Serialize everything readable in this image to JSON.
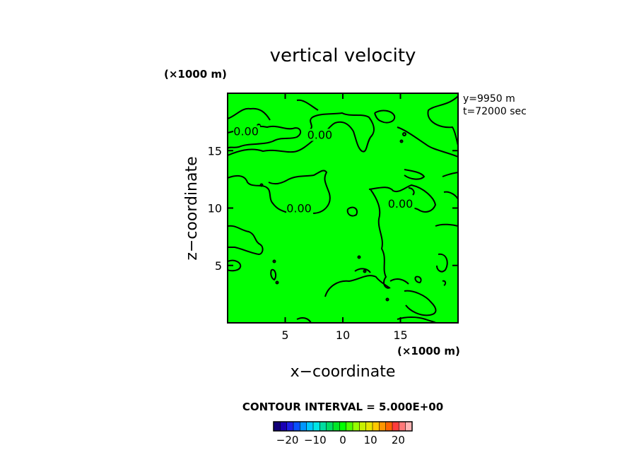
{
  "chart_data": {
    "type": "contour",
    "title": "vertical velocity",
    "xlabel": "x−coordinate",
    "ylabel": "z−coordinate",
    "x_unit": "(×1000 m)",
    "y_unit": "(×1000 m)",
    "xlim": [
      0,
      20
    ],
    "ylim": [
      0,
      20
    ],
    "x_ticks": [
      5,
      10,
      15
    ],
    "y_ticks": [
      5,
      10,
      15
    ],
    "x_tick_labels": [
      "5",
      "10",
      "15"
    ],
    "y_tick_labels": [
      "5",
      "10",
      "15"
    ],
    "field_color": "#00ff00",
    "annotations": [
      "y=9950 m",
      "t=72000 sec"
    ],
    "contour_labels": [
      {
        "text": "0.00",
        "x": 1.6,
        "z": 16.4
      },
      {
        "text": "0.00",
        "x": 8.0,
        "z": 16.1
      },
      {
        "text": "0.00",
        "x": 6.2,
        "z": 9.7
      },
      {
        "text": "0.00",
        "x": 15.0,
        "z": 10.1
      }
    ],
    "contour_interval_text": "CONTOUR INTERVAL = 5.000E+00",
    "colorbar": {
      "colors": [
        "#120078",
        "#1a00b4",
        "#1e1ee6",
        "#0a50ff",
        "#0096ff",
        "#00c8ff",
        "#00e6e6",
        "#00dca0",
        "#00dc64",
        "#00e628",
        "#00ff00",
        "#50ff00",
        "#96ff00",
        "#c8f000",
        "#e6e600",
        "#ffc800",
        "#ff9600",
        "#ff6400",
        "#ff3c3c",
        "#ff7878",
        "#ffb4b4"
      ],
      "tick_values": [
        -20,
        -10,
        0,
        10,
        20
      ],
      "tick_labels": [
        "−20",
        "−10",
        "0",
        "10",
        "20"
      ],
      "range": [
        -25,
        25
      ]
    }
  }
}
